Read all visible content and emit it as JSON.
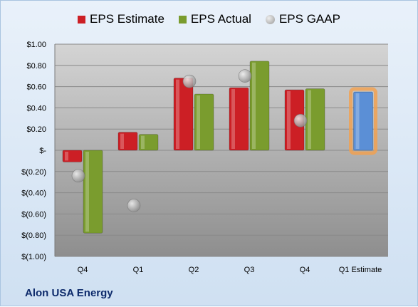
{
  "chart_data": {
    "type": "bar",
    "categories": [
      "Q4",
      "Q1",
      "Q2",
      "Q3",
      "Q4",
      "Q1 Estimate"
    ],
    "series": [
      {
        "name": "EPS Estimate",
        "color": "#cc1f25",
        "values": [
          -0.11,
          0.17,
          0.68,
          0.59,
          0.57,
          null
        ]
      },
      {
        "name": "EPS Actual",
        "color": "#7a9c2e",
        "values": [
          -0.78,
          0.15,
          0.53,
          0.84,
          0.58,
          null
        ]
      },
      {
        "name": "EPS GAAP",
        "type": "scatter",
        "color": "#b0b0b0",
        "values": [
          -0.24,
          -0.52,
          0.65,
          0.7,
          0.28,
          null
        ]
      },
      {
        "name": "Q1 Estimate",
        "color": "#5b8fd6",
        "highlight": "#f5a04b",
        "values": [
          null,
          null,
          null,
          null,
          null,
          0.55
        ]
      }
    ],
    "ylim": [
      -1.0,
      1.0
    ],
    "yticks": [
      "$1.00",
      "$0.80",
      "$0.60",
      "$0.40",
      "$0.20",
      "$-",
      "$(0.20)",
      "$(0.40)",
      "$(0.60)",
      "$(0.80)",
      "$(1.00)"
    ],
    "legend_position": "top",
    "grid": true
  },
  "legend": {
    "estimate": "EPS Estimate",
    "actual": "EPS Actual",
    "gaap": "EPS GAAP"
  },
  "company": "Alon USA Energy"
}
